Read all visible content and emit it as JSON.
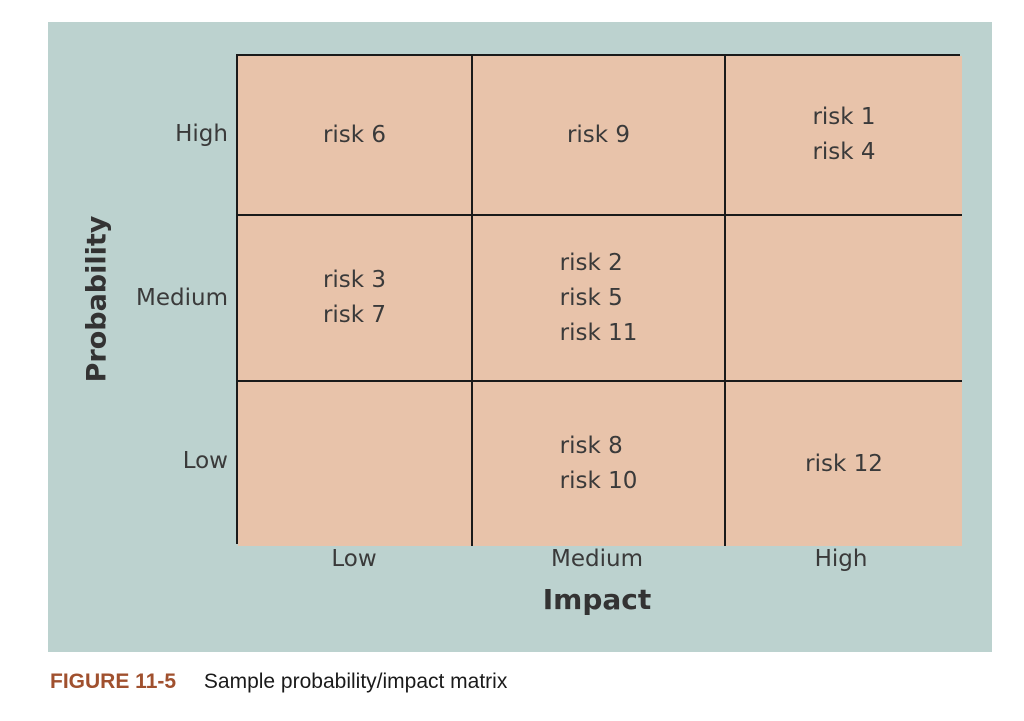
{
  "matrix": {
    "y_axis_title": "Probability",
    "x_axis_title": "Impact",
    "y_levels": [
      "High",
      "Medium",
      "Low"
    ],
    "x_levels": [
      "Low",
      "Medium",
      "High"
    ],
    "rows": [
      {
        "probability": "High",
        "cells": [
          [
            "risk 6"
          ],
          [
            "risk 9"
          ],
          [
            "risk 1",
            "risk 4"
          ]
        ]
      },
      {
        "probability": "Medium",
        "cells": [
          [
            "risk 3",
            "risk 7"
          ],
          [
            "risk 2",
            "risk 5",
            "risk 11"
          ],
          []
        ]
      },
      {
        "probability": "Low",
        "cells": [
          [],
          [
            "risk 8",
            "risk 10"
          ],
          [
            "risk 12"
          ]
        ]
      }
    ]
  },
  "caption": {
    "figure_label": "FIGURE 11-5",
    "text": "Sample probability/impact matrix"
  },
  "colors": {
    "background_panel": "#bcd2cf",
    "cell_fill": "#e8c3aa",
    "figure_label": "#a0502e"
  }
}
